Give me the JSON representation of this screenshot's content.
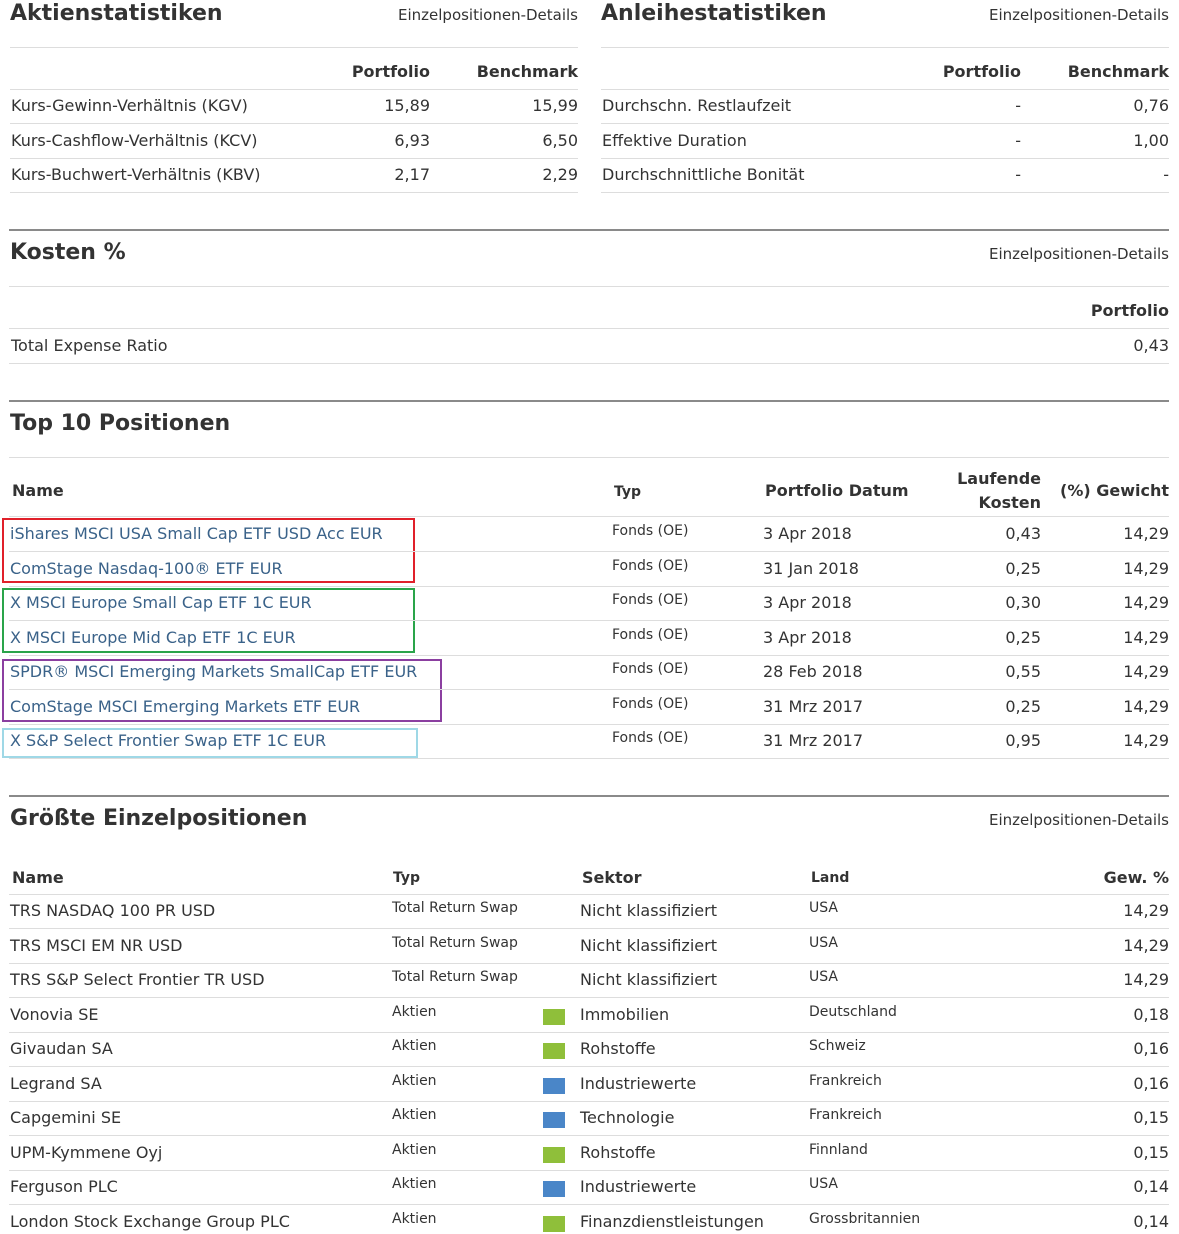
{
  "aktien": {
    "title": "Aktienstatistiken",
    "link": "Einzelpositionen-Details",
    "headers": [
      "Portfolio",
      "Benchmark"
    ],
    "rows": [
      [
        "Kurs-Gewinn-Verhältnis (KGV)",
        "15,89",
        "15,99"
      ],
      [
        "Kurs-Cashflow-Verhältnis (KCV)",
        "6,93",
        "6,50"
      ],
      [
        "Kurs-Buchwert-Verhältnis (KBV)",
        "2,17",
        "2,29"
      ]
    ]
  },
  "anleihen": {
    "title": "Anleihestatistiken",
    "link": "Einzelpositionen-Details",
    "headers": [
      "Portfolio",
      "Benchmark"
    ],
    "rows": [
      [
        "Durchschn. Restlaufzeit",
        "-",
        "0,76"
      ],
      [
        "Effektive Duration",
        "-",
        "1,00"
      ],
      [
        "Durchschnittliche Bonität",
        "-",
        "-"
      ]
    ]
  },
  "kosten": {
    "title": "Kosten %",
    "link": "Einzelpositionen-Details",
    "headers": [
      "Portfolio"
    ],
    "rows": [
      [
        "Total Expense Ratio",
        "0,43"
      ]
    ]
  },
  "top10": {
    "title": "Top 10 Positionen",
    "headers": [
      "Name",
      "Typ",
      "Portfolio Datum",
      "Laufende Kosten",
      "(%) Gewicht"
    ],
    "rows": [
      [
        "iShares MSCI USA Small Cap ETF USD Acc EUR",
        "Fonds (OE)",
        "3 Apr 2018",
        "0,43",
        "14,29"
      ],
      [
        "ComStage Nasdaq-100® ETF EUR",
        "Fonds (OE)",
        "31 Jan 2018",
        "0,25",
        "14,29"
      ],
      [
        "X MSCI Europe Small Cap ETF 1C EUR",
        "Fonds (OE)",
        "3 Apr 2018",
        "0,30",
        "14,29"
      ],
      [
        "X MSCI Europe Mid Cap ETF 1C EUR",
        "Fonds (OE)",
        "3 Apr 2018",
        "0,25",
        "14,29"
      ],
      [
        "SPDR® MSCI Emerging Markets SmallCap ETF EUR",
        "Fonds (OE)",
        "28 Feb 2018",
        "0,55",
        "14,29"
      ],
      [
        "ComStage MSCI Emerging Markets ETF EUR",
        "Fonds (OE)",
        "31 Mrz 2017",
        "0,25",
        "14,29"
      ],
      [
        "X S&P Select Frontier Swap ETF 1C EUR",
        "Fonds (OE)",
        "31 Mrz 2017",
        "0,95",
        "14,29"
      ]
    ]
  },
  "groesste": {
    "title": "Größte Einzelpositionen",
    "link": "Einzelpositionen-Details",
    "headers": [
      "Name",
      "Typ",
      "Sektor",
      "Land",
      "Gew. %"
    ],
    "rows": [
      [
        "TRS NASDAQ 100 PR USD",
        "Total Return Swap",
        "Nicht klassifiziert",
        "USA",
        "14,29"
      ],
      [
        "TRS MSCI EM NR USD",
        "Total Return Swap",
        "Nicht klassifiziert",
        "USA",
        "14,29"
      ],
      [
        "TRS S&P Select Frontier TR USD",
        "Total Return Swap",
        "Nicht klassifiziert",
        "USA",
        "14,29"
      ],
      [
        "Vonovia SE",
        "Aktien",
        "Immobilien",
        "Deutschland",
        "0,18"
      ],
      [
        "Givaudan SA",
        "Aktien",
        "Rohstoffe",
        "Schweiz",
        "0,16"
      ],
      [
        "Legrand SA",
        "Aktien",
        "Industriewerte",
        "Frankreich",
        "0,16"
      ],
      [
        "Capgemini SE",
        "Aktien",
        "Technologie",
        "Frankreich",
        "0,15"
      ],
      [
        "UPM-Kymmene Oyj",
        "Aktien",
        "Rohstoffe",
        "Finnland",
        "0,15"
      ],
      [
        "Ferguson PLC",
        "Aktien",
        "Industriewerte",
        "USA",
        "0,14"
      ],
      [
        "London Stock Exchange Group PLC",
        "Aktien",
        "Finanzdienstleistungen",
        "Grossbritannien",
        "0,14"
      ]
    ]
  }
}
